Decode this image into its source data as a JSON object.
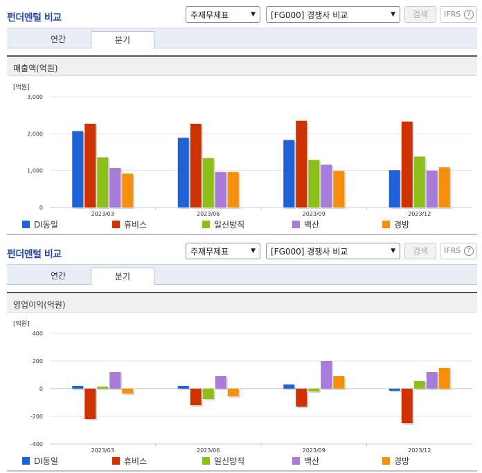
{
  "panels": [
    {
      "title": "펀더멘털 비교",
      "select1": "주재무제표",
      "select2": "[FG000] 경쟁사 비교",
      "search_label": "검색",
      "ifrs_label": "IFRS",
      "ifrs_help": "?",
      "tabs": [
        "연간",
        "분기"
      ],
      "chart_title": "매출액(억원)"
    },
    {
      "title": "펀더멘털 비교",
      "select1": "주재무제표",
      "select2": "[FG000] 경쟁사 비교",
      "search_label": "검색",
      "ifrs_label": "IFRS",
      "ifrs_help": "?",
      "tabs": [
        "연간",
        "분기"
      ],
      "chart_title": "영업이익(억원)"
    }
  ],
  "chart_data": [
    {
      "type": "bar",
      "title": "매출액(억원)",
      "unit_label": "[억원]",
      "categories": [
        "2023/03",
        "2023/06",
        "2023/09",
        "2023/12"
      ],
      "ylim": [
        0,
        3000
      ],
      "yticks": [
        "0",
        "1,000",
        "2,000",
        "3,000"
      ],
      "ytick_values": [
        0,
        1000,
        2000,
        3000
      ],
      "legend_position": "bottom",
      "series": [
        {
          "name": "DI동일",
          "color": "#1f62d6",
          "values": [
            2070,
            1890,
            1830,
            1010
          ]
        },
        {
          "name": "휴비스",
          "color": "#cc3300",
          "values": [
            2270,
            2270,
            2350,
            2330
          ]
        },
        {
          "name": "일신방직",
          "color": "#8cbf1a",
          "values": [
            1360,
            1340,
            1290,
            1380
          ]
        },
        {
          "name": "백산",
          "color": "#a97bd8",
          "values": [
            1070,
            960,
            1160,
            1000
          ]
        },
        {
          "name": "경방",
          "color": "#f5900c",
          "values": [
            920,
            960,
            990,
            1090
          ]
        }
      ]
    },
    {
      "type": "bar",
      "title": "영업이익(억원)",
      "unit_label": "[억원]",
      "categories": [
        "2023/03",
        "2023/06",
        "2023/09",
        "2023/12"
      ],
      "ylim": [
        -400,
        400
      ],
      "yticks": [
        "-400",
        "-200",
        "0",
        "200",
        "400"
      ],
      "ytick_values": [
        -400,
        -200,
        0,
        200,
        400
      ],
      "legend_position": "bottom",
      "series": [
        {
          "name": "DI동일",
          "color": "#1f62d6",
          "values": [
            20,
            20,
            30,
            -15
          ]
        },
        {
          "name": "휴비스",
          "color": "#cc3300",
          "values": [
            -220,
            -120,
            -130,
            -250
          ]
        },
        {
          "name": "일신방직",
          "color": "#8cbf1a",
          "values": [
            15,
            -75,
            -20,
            55
          ]
        },
        {
          "name": "백산",
          "color": "#a97bd8",
          "values": [
            120,
            90,
            200,
            120
          ]
        },
        {
          "name": "경방",
          "color": "#f5900c",
          "values": [
            -35,
            -55,
            90,
            150
          ]
        }
      ]
    }
  ]
}
